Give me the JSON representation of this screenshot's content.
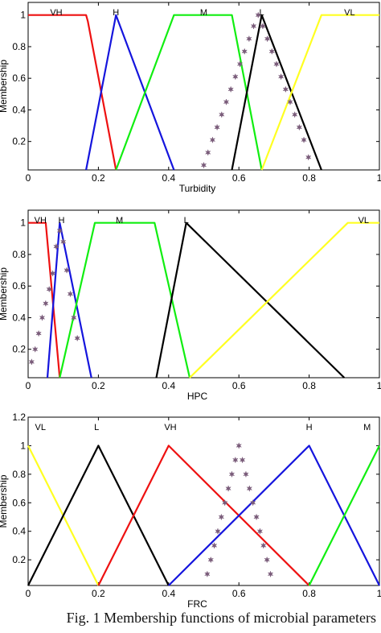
{
  "caption": "Fig. 1 Membership functions of microbial parameters",
  "colors": {
    "red": "#ee1111",
    "blue": "#1515dd",
    "green": "#11ee11",
    "black": "#000000",
    "yellow": "#ffff22",
    "marker": "#7a5c7a"
  },
  "chart_data": [
    {
      "type": "line",
      "xlabel": "Turbidity",
      "ylabel": "Membership",
      "xlim": [
        0,
        1
      ],
      "ylim": [
        0.02,
        1.08
      ],
      "xticks": [
        "0",
        "0.2",
        "0.4",
        "0.6",
        "0.8",
        "1"
      ],
      "yticks": [
        "0.2",
        "0.4",
        "0.6",
        "0.8",
        "1"
      ],
      "series": [
        {
          "name": "VH",
          "label_x": 0.08,
          "color": "#ee1111",
          "x": [
            0,
            0.165,
            0.17,
            0.25
          ],
          "y": [
            1,
            1,
            0.96,
            0.02
          ]
        },
        {
          "name": "H",
          "label_x": 0.25,
          "color": "#1515dd",
          "x": [
            0.165,
            0.25,
            0.415
          ],
          "y": [
            0.02,
            1,
            0.02
          ]
        },
        {
          "name": "M",
          "label_x": 0.5,
          "color": "#11ee11",
          "x": [
            0.25,
            0.415,
            0.58,
            0.665
          ],
          "y": [
            0.02,
            1,
            1,
            0.02
          ]
        },
        {
          "name": "L",
          "label_x": 0.665,
          "color": "#000000",
          "x": [
            0.58,
            0.665,
            0.835
          ],
          "y": [
            0.02,
            1,
            0.02
          ]
        },
        {
          "name": "VL",
          "label_x": 0.915,
          "color": "#ffff22",
          "x": [
            0.665,
            0.835,
            1
          ],
          "y": [
            0.02,
            1,
            1
          ]
        }
      ],
      "markers": {
        "x": [
          0.5,
          0.512,
          0.525,
          0.538,
          0.551,
          0.564,
          0.577,
          0.59,
          0.603,
          0.616,
          0.629,
          0.642,
          0.655,
          0.668,
          0.681,
          0.694,
          0.707,
          0.72,
          0.733,
          0.746,
          0.759,
          0.772,
          0.785,
          0.798
        ],
        "y": [
          0.05,
          0.13,
          0.21,
          0.29,
          0.37,
          0.45,
          0.53,
          0.61,
          0.69,
          0.77,
          0.85,
          0.93,
          1.0,
          0.93,
          0.85,
          0.77,
          0.69,
          0.61,
          0.53,
          0.45,
          0.37,
          0.29,
          0.21,
          0.1
        ]
      }
    },
    {
      "type": "line",
      "xlabel": "HPC",
      "ylabel": "Membership",
      "xlim": [
        0,
        1
      ],
      "ylim": [
        0.02,
        1.08
      ],
      "xticks": [
        "0",
        "0.2",
        "0.4",
        "0.6",
        "0.8",
        "1"
      ],
      "yticks": [
        "0.2",
        "0.4",
        "0.6",
        "0.8",
        "1"
      ],
      "series": [
        {
          "name": "VH",
          "label_x": 0.035,
          "color": "#ee1111",
          "x": [
            0,
            0.05,
            0.09
          ],
          "y": [
            1,
            1,
            0.02
          ]
        },
        {
          "name": "H",
          "label_x": 0.095,
          "color": "#1515dd",
          "x": [
            0.055,
            0.09,
            0.18
          ],
          "y": [
            0.02,
            1,
            0.02
          ]
        },
        {
          "name": "M",
          "label_x": 0.26,
          "color": "#11ee11",
          "x": [
            0.09,
            0.19,
            0.36,
            0.46
          ],
          "y": [
            0.02,
            1,
            1,
            0.02
          ]
        },
        {
          "name": "L",
          "label_x": 0.45,
          "color": "#000000",
          "x": [
            0.365,
            0.45,
            0.9
          ],
          "y": [
            0.02,
            1,
            0.02
          ]
        },
        {
          "name": "VL",
          "label_x": 0.955,
          "color": "#ffff22",
          "x": [
            0.46,
            0.91,
            1
          ],
          "y": [
            0.02,
            1,
            1
          ]
        }
      ],
      "markers": {
        "x": [
          0.01,
          0.02,
          0.03,
          0.04,
          0.05,
          0.06,
          0.07,
          0.08,
          0.09,
          0.1,
          0.11,
          0.12,
          0.13,
          0.14
        ],
        "y": [
          0.12,
          0.2,
          0.3,
          0.4,
          0.49,
          0.58,
          0.68,
          0.85,
          0.95,
          0.88,
          0.7,
          0.55,
          0.4,
          0.27
        ]
      }
    },
    {
      "type": "line",
      "xlabel": "FRC",
      "ylabel": "Membership",
      "xlim": [
        0,
        1
      ],
      "ylim": [
        0.02,
        1.2
      ],
      "xticks": [
        "0",
        "0.2",
        "0.4",
        "0.6",
        "0.8",
        "1"
      ],
      "yticks": [
        "0.2",
        "0.4",
        "0.6",
        "0.8",
        "1",
        "1.2"
      ],
      "series": [
        {
          "name": "VL",
          "label_x": 0.035,
          "color": "#ffff22",
          "x": [
            0,
            0.2
          ],
          "y": [
            1,
            0.02
          ]
        },
        {
          "name": "L",
          "label_x": 0.195,
          "color": "#000000",
          "x": [
            0,
            0.2,
            0.4
          ],
          "y": [
            0.02,
            1,
            0.02
          ]
        },
        {
          "name": "VH",
          "label_x": 0.405,
          "color": "#ee1111",
          "x": [
            0.2,
            0.4,
            0.8
          ],
          "y": [
            0.02,
            1,
            0.02
          ]
        },
        {
          "name": "H",
          "label_x": 0.8,
          "color": "#1515dd",
          "x": [
            0.4,
            0.8,
            1
          ],
          "y": [
            0.02,
            1,
            0.02
          ]
        },
        {
          "name": "M",
          "label_x": 0.965,
          "color": "#11ee11",
          "x": [
            0.8,
            1
          ],
          "y": [
            0.02,
            1
          ]
        }
      ],
      "markers": {
        "x": [
          0.51,
          0.52,
          0.53,
          0.54,
          0.55,
          0.56,
          0.57,
          0.58,
          0.59,
          0.6,
          0.61,
          0.62,
          0.63,
          0.64,
          0.65,
          0.66,
          0.67,
          0.68,
          0.69
        ],
        "y": [
          0.1,
          0.2,
          0.3,
          0.4,
          0.5,
          0.6,
          0.7,
          0.8,
          0.9,
          1.0,
          0.9,
          0.8,
          0.7,
          0.6,
          0.5,
          0.4,
          0.3,
          0.2,
          0.1
        ]
      }
    }
  ]
}
